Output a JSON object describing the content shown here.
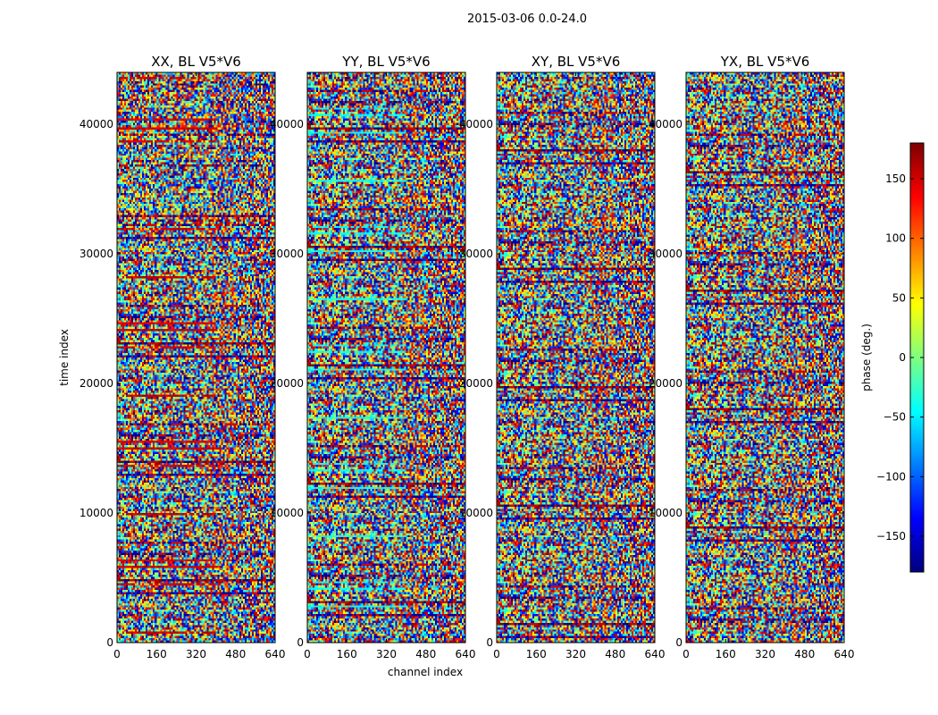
{
  "figure_title": "2015-03-06 0.0-24.0",
  "chart_data": {
    "type": "heatmap",
    "title": "2015-03-06 0.0-24.0",
    "xlabel": "channel index",
    "ylabel": "time index",
    "xlim": [
      0,
      640
    ],
    "ylim": [
      0,
      44000
    ],
    "x_ticks": [
      "0",
      "160",
      "320",
      "480",
      "640"
    ],
    "y_ticks": [
      "0",
      "10000",
      "20000",
      "30000",
      "40000"
    ],
    "panels": [
      {
        "title": "XX, BL V5*V6"
      },
      {
        "title": "YY, BL V5*V6"
      },
      {
        "title": "XY, BL V5*V6"
      },
      {
        "title": "YX, BL V5*V6"
      }
    ],
    "colorbar": {
      "label": "phase (deg.)",
      "range": [
        -180,
        180
      ],
      "ticks": [
        "150",
        "100",
        "50",
        "0",
        "−50",
        "−100",
        "−150"
      ],
      "colormap": "jet"
    }
  }
}
